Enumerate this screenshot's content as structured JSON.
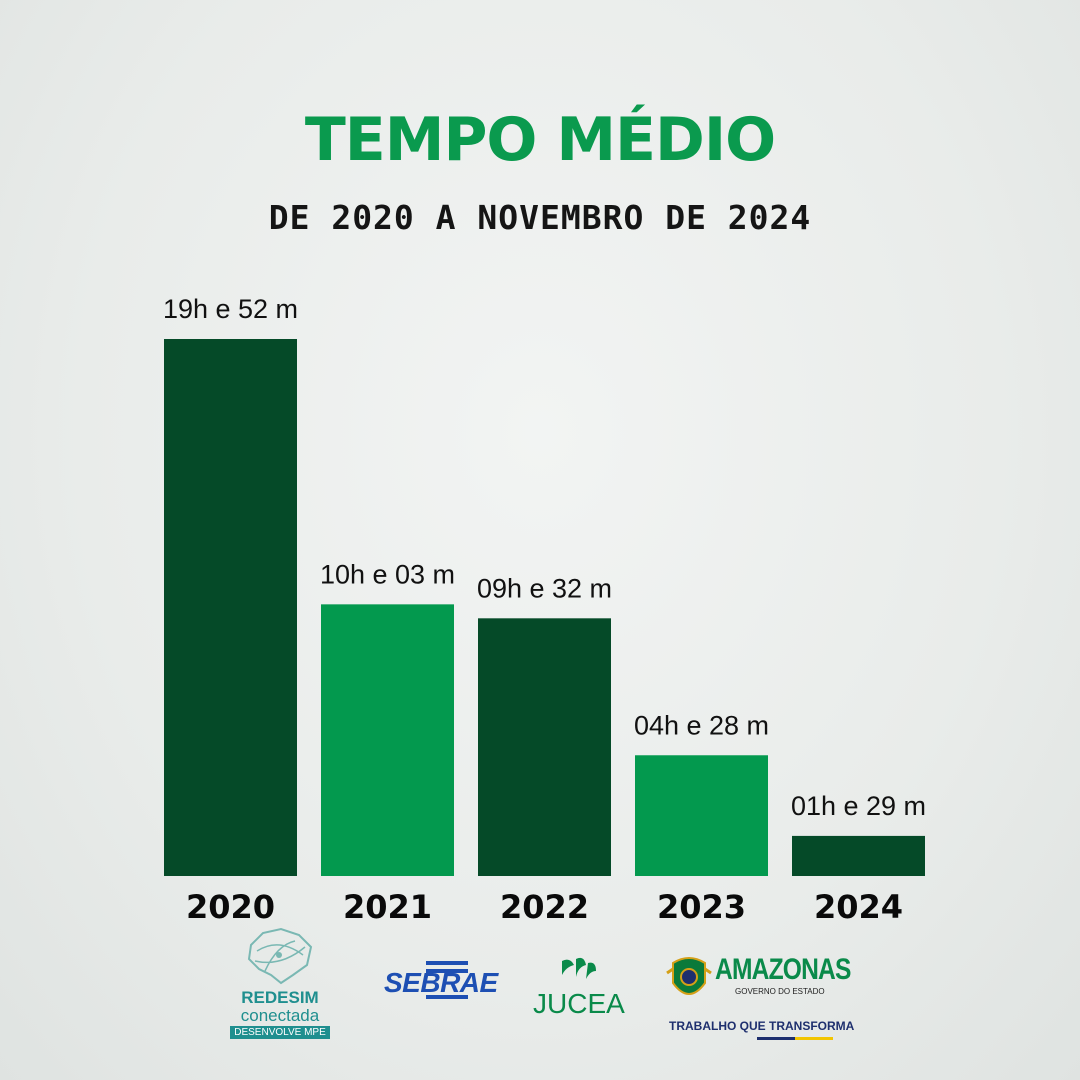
{
  "header": {
    "title": "TEMPO MÉDIO",
    "subtitle": "DE 2020 A NOVEMBRO DE 2024"
  },
  "colors": {
    "title": "#0a9a4e",
    "dark_green": "#054a28",
    "light_green": "#03994e"
  },
  "chart_data": {
    "type": "bar",
    "title": "TEMPO MÉDIO",
    "subtitle": "DE 2020 A NOVEMBRO DE 2024",
    "categories": [
      "2020",
      "2021",
      "2022",
      "2023",
      "2024"
    ],
    "values_minutes": [
      1192,
      603,
      572,
      268,
      89
    ],
    "data_labels": [
      "19h e 52 m",
      "10h e 03 m",
      "09h e 32 m",
      "04h e 28 m",
      "01h e 29 m"
    ],
    "bar_colors": [
      "#054a28",
      "#03994e",
      "#054a28",
      "#03994e",
      "#054a28"
    ],
    "xlabel": "",
    "ylabel": "",
    "grid": false,
    "legend": "none"
  },
  "footer": {
    "redesim_line1": "REDESIM",
    "redesim_line2": "conectada",
    "redesim_line3": "DESENVOLVE MPE",
    "sebrae": "SEBRAE",
    "jucea": "JUCEA",
    "amazonas": "AMAZONAS",
    "amazonas_sub": "GOVERNO DO ESTADO",
    "amazonas_slogan": "TRABALHO QUE TRANSFORMA"
  }
}
